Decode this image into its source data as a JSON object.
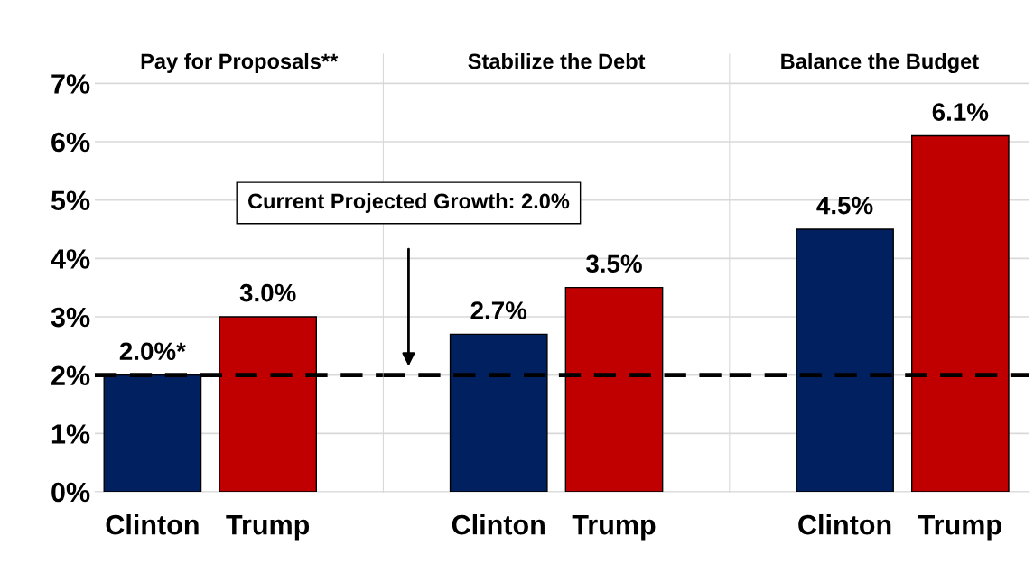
{
  "chart_data": [
    {
      "type": "bar",
      "title": "Pay for Proposals**",
      "categories": [
        "Clinton",
        "Trump"
      ],
      "values": [
        2.0,
        3.0
      ],
      "colors": [
        "#002060",
        "#c00000"
      ],
      "value_labels": [
        "2.0%*",
        "3.0%"
      ],
      "ylim": [
        0,
        7.5
      ],
      "yticks": [
        {
          "value": 0,
          "label": "0%"
        },
        {
          "value": 1,
          "label": "1%"
        },
        {
          "value": 2,
          "label": "2%"
        },
        {
          "value": 3,
          "label": "3%"
        },
        {
          "value": 4,
          "label": "4%"
        },
        {
          "value": 5,
          "label": "5%"
        },
        {
          "value": 6,
          "label": "6%"
        },
        {
          "value": 7,
          "label": "7%"
        }
      ],
      "grid": "y",
      "ref_lines": [
        {
          "axis": "y",
          "value": 2.0,
          "color": "#000000",
          "line_style": "dashed"
        }
      ]
    },
    {
      "type": "bar",
      "title": "Stabilize the Debt",
      "categories": [
        "Clinton",
        "Trump"
      ],
      "values": [
        2.7,
        3.5
      ],
      "colors": [
        "#002060",
        "#c00000"
      ],
      "value_labels": [
        "2.7%",
        "3.5%"
      ],
      "ylim": [
        0,
        7.5
      ],
      "tick_labels": "x",
      "grid": "y",
      "ref_lines": [
        {
          "axis": "y",
          "value": 2.0,
          "color": "#000000",
          "line_style": "dashed"
        }
      ],
      "annotations": [
        "Current Projected Growth: 2.0%"
      ]
    },
    {
      "type": "bar",
      "title": "Balance the Budget",
      "categories": [
        "Clinton",
        "Trump"
      ],
      "values": [
        4.5,
        6.1
      ],
      "colors": [
        "#002060",
        "#c00000"
      ],
      "value_labels": [
        "4.5%",
        "6.1%"
      ],
      "ylim": [
        0,
        7.5
      ],
      "tick_labels": "x",
      "grid": "y",
      "ref_lines": [
        {
          "axis": "y",
          "value": 2.0,
          "color": "#000000",
          "line_style": "dashed"
        }
      ]
    }
  ]
}
